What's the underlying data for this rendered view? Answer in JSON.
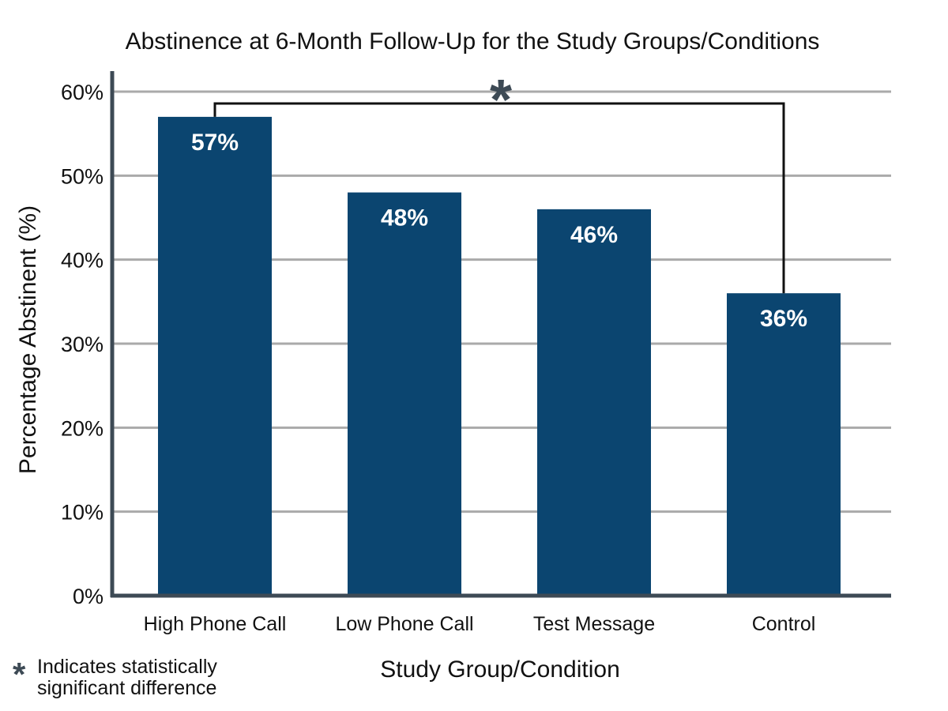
{
  "chart_data": {
    "type": "bar",
    "title": "Abstinence at 6-Month Follow-Up for the Study Groups/Conditions",
    "xlabel": "Study Group/Condition",
    "ylabel": "Percentage Abstinent (%)",
    "categories": [
      "High Phone Call",
      "Low Phone Call",
      "Test Message",
      "Control"
    ],
    "values": [
      57,
      48,
      46,
      36
    ],
    "data_labels": [
      "57%",
      "48%",
      "46%",
      "36%"
    ],
    "ylim": [
      0,
      60
    ],
    "yticks": [
      0,
      10,
      20,
      30,
      40,
      50,
      60
    ],
    "ytick_labels": [
      "0%",
      "10%",
      "20%",
      "30%",
      "40%",
      "50%",
      "60%"
    ],
    "grid": true,
    "legend": "none",
    "annotations": {
      "significance_bracket": {
        "from_category": "High Phone Call",
        "to_category": "Control",
        "marker": "*"
      },
      "footnote": {
        "marker": "*",
        "line1": "Indicates statistically",
        "line2": "significant difference"
      }
    },
    "colors": {
      "bar": "#0b4570",
      "grid": "#aaaaaa",
      "axis": "#3d4a55",
      "bracket": "#111111",
      "star": "#3d4a55"
    }
  }
}
